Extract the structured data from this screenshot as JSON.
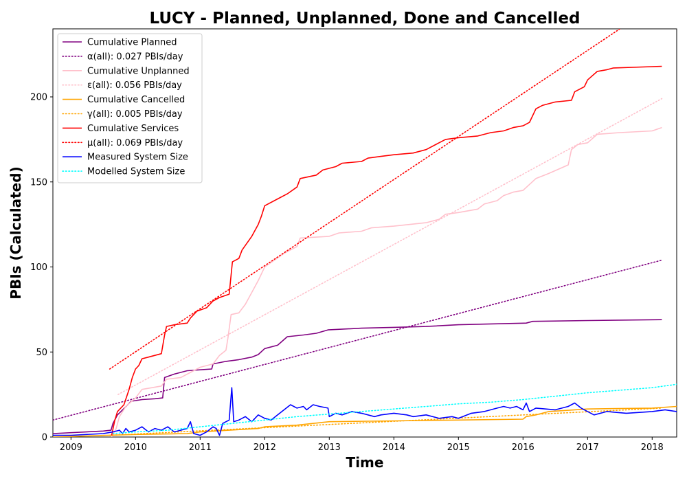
{
  "chart_data": {
    "type": "line",
    "title": "LUCY - Planned, Unplanned, Done  and Cancelled",
    "xlabel": "Time",
    "ylabel": "PBIs (Calculated)",
    "xlim": [
      2008.72,
      2018.38
    ],
    "ylim": [
      0,
      240
    ],
    "x_ticks": [
      2009,
      2010,
      2011,
      2012,
      2013,
      2014,
      2015,
      2016,
      2017,
      2018
    ],
    "y_ticks": [
      0,
      50,
      100,
      150,
      200
    ],
    "grid": false,
    "legend_position": "top-left",
    "series": [
      {
        "name": "Cumulative Planned",
        "color": "#800080",
        "style": "solid",
        "points": [
          [
            2008.72,
            2
          ],
          [
            2009.5,
            3.5
          ],
          [
            2009.62,
            4
          ],
          [
            2009.65,
            8
          ],
          [
            2009.72,
            13
          ],
          [
            2009.8,
            16
          ],
          [
            2009.88,
            19
          ],
          [
            2009.93,
            21
          ],
          [
            2010.1,
            22
          ],
          [
            2010.3,
            22.5
          ],
          [
            2010.42,
            23
          ],
          [
            2010.45,
            35
          ],
          [
            2010.6,
            37
          ],
          [
            2010.8,
            39
          ],
          [
            2011.0,
            39.5
          ],
          [
            2011.18,
            40
          ],
          [
            2011.2,
            43
          ],
          [
            2011.4,
            44.5
          ],
          [
            2011.6,
            45.5
          ],
          [
            2011.8,
            47
          ],
          [
            2011.9,
            48.5
          ],
          [
            2012.0,
            52
          ],
          [
            2012.2,
            54
          ],
          [
            2012.35,
            59
          ],
          [
            2012.6,
            60
          ],
          [
            2012.8,
            61
          ],
          [
            2012.98,
            63
          ],
          [
            2013.5,
            64
          ],
          [
            2014.0,
            64.5
          ],
          [
            2014.5,
            65
          ],
          [
            2015.0,
            66
          ],
          [
            2015.5,
            66.5
          ],
          [
            2016.05,
            67
          ],
          [
            2016.15,
            68
          ],
          [
            2017.0,
            68.5
          ],
          [
            2018.15,
            69
          ]
        ]
      },
      {
        "name": "α(all): 0.027 PBIs/day",
        "color": "#800080",
        "style": "dotted",
        "points": [
          [
            2008.72,
            10
          ],
          [
            2018.15,
            104
          ]
        ]
      },
      {
        "name": "Cumulative Unplanned",
        "color": "#ffc0cb",
        "style": "solid",
        "points": [
          [
            2009.63,
            0
          ],
          [
            2009.7,
            5
          ],
          [
            2009.75,
            12
          ],
          [
            2009.85,
            18
          ],
          [
            2010.0,
            23
          ],
          [
            2010.1,
            28
          ],
          [
            2010.4,
            30
          ],
          [
            2010.48,
            34
          ],
          [
            2010.7,
            35
          ],
          [
            2010.85,
            38
          ],
          [
            2011.0,
            41
          ],
          [
            2011.2,
            43
          ],
          [
            2011.3,
            48
          ],
          [
            2011.4,
            51
          ],
          [
            2011.43,
            58
          ],
          [
            2011.48,
            72
          ],
          [
            2011.6,
            73
          ],
          [
            2011.7,
            78
          ],
          [
            2011.8,
            85
          ],
          [
            2011.9,
            92
          ],
          [
            2012.0,
            100
          ],
          [
            2012.15,
            104
          ],
          [
            2012.3,
            108
          ],
          [
            2012.5,
            112
          ],
          [
            2012.55,
            117
          ],
          [
            2013.0,
            118
          ],
          [
            2013.15,
            120
          ],
          [
            2013.5,
            121
          ],
          [
            2013.65,
            123
          ],
          [
            2014.0,
            124
          ],
          [
            2014.5,
            126
          ],
          [
            2014.7,
            128
          ],
          [
            2014.8,
            131
          ],
          [
            2015.0,
            132
          ],
          [
            2015.3,
            134
          ],
          [
            2015.4,
            137
          ],
          [
            2015.6,
            139
          ],
          [
            2015.7,
            142
          ],
          [
            2015.85,
            144
          ],
          [
            2016.0,
            145
          ],
          [
            2016.2,
            152
          ],
          [
            2016.4,
            155
          ],
          [
            2016.7,
            160
          ],
          [
            2016.75,
            169
          ],
          [
            2016.85,
            172
          ],
          [
            2017.0,
            173
          ],
          [
            2017.15,
            178
          ],
          [
            2017.5,
            179
          ],
          [
            2018.0,
            180
          ],
          [
            2018.15,
            182
          ]
        ]
      },
      {
        "name": "ε(all): 0.056 PBIs/day",
        "color": "#ffc0cb",
        "style": "dotted",
        "points": [
          [
            2009.73,
            25
          ],
          [
            2018.15,
            199
          ]
        ]
      },
      {
        "name": "Cumulative Cancelled",
        "color": "#ffa500",
        "style": "solid",
        "points": [
          [
            2008.72,
            0
          ],
          [
            2009.55,
            1
          ],
          [
            2010.0,
            1.5
          ],
          [
            2010.8,
            2
          ],
          [
            2011.0,
            3
          ],
          [
            2011.9,
            5
          ],
          [
            2012.0,
            6
          ],
          [
            2012.5,
            7
          ],
          [
            2013.0,
            9
          ],
          [
            2014.0,
            9.5
          ],
          [
            2015.0,
            10
          ],
          [
            2016.0,
            10.5
          ],
          [
            2016.05,
            12
          ],
          [
            2016.2,
            13
          ],
          [
            2016.4,
            15
          ],
          [
            2016.8,
            16
          ],
          [
            2017.0,
            16.5
          ],
          [
            2018.0,
            17
          ],
          [
            2018.38,
            18
          ]
        ]
      },
      {
        "name": "γ(all): 0.005 PBIs/day",
        "color": "#ffa500",
        "style": "dotted",
        "points": [
          [
            2009.6,
            1
          ],
          [
            2018.15,
            17
          ]
        ]
      },
      {
        "name": "Cumulative Services",
        "color": "#ff0000",
        "style": "solid",
        "points": [
          [
            2009.63,
            1
          ],
          [
            2009.68,
            10
          ],
          [
            2009.72,
            15
          ],
          [
            2009.82,
            19
          ],
          [
            2009.9,
            28
          ],
          [
            2009.95,
            35
          ],
          [
            2010.0,
            40
          ],
          [
            2010.05,
            42
          ],
          [
            2010.1,
            46
          ],
          [
            2010.2,
            47
          ],
          [
            2010.4,
            49
          ],
          [
            2010.45,
            60
          ],
          [
            2010.48,
            65
          ],
          [
            2010.6,
            66
          ],
          [
            2010.8,
            67
          ],
          [
            2010.85,
            70
          ],
          [
            2010.95,
            74
          ],
          [
            2011.1,
            76
          ],
          [
            2011.2,
            80
          ],
          [
            2011.3,
            82
          ],
          [
            2011.45,
            84
          ],
          [
            2011.5,
            103
          ],
          [
            2011.6,
            105
          ],
          [
            2011.65,
            110
          ],
          [
            2011.8,
            118
          ],
          [
            2011.9,
            125
          ],
          [
            2011.95,
            130
          ],
          [
            2012.0,
            136
          ],
          [
            2012.2,
            140
          ],
          [
            2012.35,
            143
          ],
          [
            2012.5,
            147
          ],
          [
            2012.55,
            152
          ],
          [
            2012.8,
            154
          ],
          [
            2012.9,
            157
          ],
          [
            2013.1,
            159
          ],
          [
            2013.2,
            161
          ],
          [
            2013.5,
            162
          ],
          [
            2013.6,
            164
          ],
          [
            2013.8,
            165
          ],
          [
            2014.0,
            166
          ],
          [
            2014.3,
            167
          ],
          [
            2014.5,
            169
          ],
          [
            2014.7,
            173
          ],
          [
            2014.8,
            175
          ],
          [
            2015.0,
            176
          ],
          [
            2015.3,
            177
          ],
          [
            2015.5,
            179
          ],
          [
            2015.7,
            180
          ],
          [
            2015.85,
            182
          ],
          [
            2016.0,
            183
          ],
          [
            2016.1,
            185
          ],
          [
            2016.2,
            193
          ],
          [
            2016.3,
            195
          ],
          [
            2016.5,
            197
          ],
          [
            2016.75,
            198
          ],
          [
            2016.8,
            203
          ],
          [
            2016.95,
            206
          ],
          [
            2017.0,
            210
          ],
          [
            2017.15,
            215
          ],
          [
            2017.3,
            216
          ],
          [
            2017.4,
            217
          ],
          [
            2018.15,
            218
          ]
        ]
      },
      {
        "name": "μ(all): 0.069 PBIs/day",
        "color": "#ff0000",
        "style": "dotted",
        "points": [
          [
            2009.6,
            40
          ],
          [
            2017.5,
            240
          ]
        ]
      },
      {
        "name": "Measured System Size",
        "color": "#0000ff",
        "style": "solid",
        "points": [
          [
            2008.72,
            1
          ],
          [
            2009.0,
            1
          ],
          [
            2009.5,
            2
          ],
          [
            2009.65,
            3
          ],
          [
            2009.75,
            4
          ],
          [
            2009.8,
            2
          ],
          [
            2009.85,
            5
          ],
          [
            2009.9,
            3
          ],
          [
            2010.0,
            4
          ],
          [
            2010.1,
            6
          ],
          [
            2010.2,
            3
          ],
          [
            2010.3,
            5
          ],
          [
            2010.4,
            4
          ],
          [
            2010.5,
            6
          ],
          [
            2010.6,
            3
          ],
          [
            2010.7,
            4
          ],
          [
            2010.8,
            5
          ],
          [
            2010.85,
            9
          ],
          [
            2010.9,
            2
          ],
          [
            2011.0,
            1
          ],
          [
            2011.1,
            3
          ],
          [
            2011.2,
            6
          ],
          [
            2011.25,
            5
          ],
          [
            2011.3,
            1
          ],
          [
            2011.35,
            8
          ],
          [
            2011.45,
            10
          ],
          [
            2011.49,
            29
          ],
          [
            2011.52,
            9
          ],
          [
            2011.6,
            10
          ],
          [
            2011.7,
            12
          ],
          [
            2011.8,
            9
          ],
          [
            2011.9,
            13
          ],
          [
            2012.0,
            11
          ],
          [
            2012.1,
            10
          ],
          [
            2012.2,
            13
          ],
          [
            2012.3,
            16
          ],
          [
            2012.4,
            19
          ],
          [
            2012.5,
            17
          ],
          [
            2012.6,
            18
          ],
          [
            2012.65,
            16
          ],
          [
            2012.75,
            19
          ],
          [
            2012.85,
            18
          ],
          [
            2012.98,
            17
          ],
          [
            2013.0,
            12
          ],
          [
            2013.1,
            14
          ],
          [
            2013.2,
            13
          ],
          [
            2013.35,
            15
          ],
          [
            2013.5,
            14
          ],
          [
            2013.7,
            12
          ],
          [
            2013.8,
            13
          ],
          [
            2014.0,
            14
          ],
          [
            2014.2,
            13
          ],
          [
            2014.3,
            12
          ],
          [
            2014.5,
            13
          ],
          [
            2014.7,
            11
          ],
          [
            2014.9,
            12
          ],
          [
            2015.0,
            11
          ],
          [
            2015.2,
            14
          ],
          [
            2015.4,
            15
          ],
          [
            2015.6,
            17
          ],
          [
            2015.7,
            18
          ],
          [
            2015.8,
            17
          ],
          [
            2015.9,
            18
          ],
          [
            2016.0,
            16
          ],
          [
            2016.05,
            20
          ],
          [
            2016.1,
            15
          ],
          [
            2016.2,
            17
          ],
          [
            2016.5,
            16
          ],
          [
            2016.7,
            18
          ],
          [
            2016.8,
            20
          ],
          [
            2016.9,
            17
          ],
          [
            2017.0,
            15
          ],
          [
            2017.1,
            13
          ],
          [
            2017.3,
            15
          ],
          [
            2017.6,
            14
          ],
          [
            2018.0,
            15
          ],
          [
            2018.2,
            16
          ],
          [
            2018.38,
            15
          ]
        ]
      },
      {
        "name": "Modelled System Size",
        "color": "#00ffff",
        "style": "dotted",
        "points": [
          [
            2009.65,
            2
          ],
          [
            2010.0,
            3
          ],
          [
            2010.5,
            4
          ],
          [
            2011.0,
            6
          ],
          [
            2011.5,
            8
          ],
          [
            2012.0,
            10
          ],
          [
            2012.5,
            12
          ],
          [
            2013.0,
            13.5
          ],
          [
            2013.5,
            15
          ],
          [
            2014.0,
            16.5
          ],
          [
            2014.5,
            18
          ],
          [
            2015.0,
            19.5
          ],
          [
            2015.5,
            20.5
          ],
          [
            2016.0,
            22
          ],
          [
            2016.5,
            24
          ],
          [
            2017.0,
            26
          ],
          [
            2017.5,
            27.5
          ],
          [
            2018.0,
            29
          ],
          [
            2018.38,
            31
          ]
        ]
      }
    ]
  }
}
